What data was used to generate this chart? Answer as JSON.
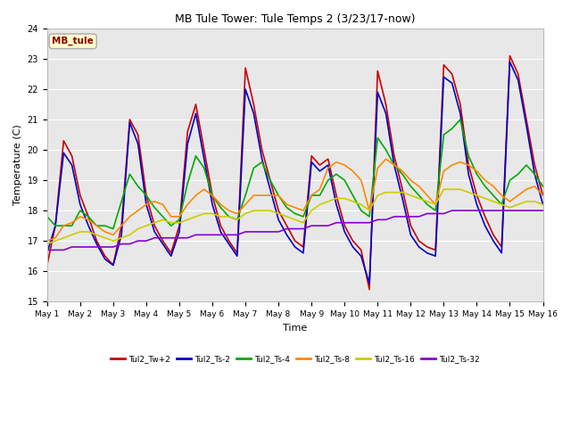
{
  "title": "MB Tule Tower: Tule Temps 2 (3/23/17-now)",
  "xlabel": "Time",
  "ylabel": "Temperature (C)",
  "ylim": [
    15.0,
    24.0
  ],
  "yticks": [
    15.0,
    16.0,
    17.0,
    18.0,
    19.0,
    20.0,
    21.0,
    22.0,
    23.0,
    24.0
  ],
  "xlim": [
    0,
    15
  ],
  "xtick_labels": [
    "May 1",
    "May 2",
    "May 3",
    "May 4",
    "May 5",
    "May 6",
    "May 7",
    "May 8",
    "May 9",
    "May 10",
    "May 11",
    "May 12",
    "May 13",
    "May 14",
    "May 15",
    "May 16"
  ],
  "bg_color": "#e8e8e8",
  "fig_color": "#ffffff",
  "annotation_text": "MB_tule",
  "annotation_color": "#880000",
  "annotation_bg": "#ffffcc",
  "annotation_border": "#aaaaaa",
  "series": [
    {
      "label": "Tul2_Tw+2",
      "color": "#cc0000",
      "lw": 1.2,
      "x": [
        0,
        0.25,
        0.5,
        0.75,
        1.0,
        1.25,
        1.5,
        1.75,
        2.0,
        2.25,
        2.5,
        2.75,
        3.0,
        3.25,
        3.5,
        3.75,
        4.0,
        4.25,
        4.5,
        4.75,
        5.0,
        5.25,
        5.5,
        5.75,
        6.0,
        6.25,
        6.5,
        6.75,
        7.0,
        7.25,
        7.5,
        7.75,
        8.0,
        8.25,
        8.5,
        8.75,
        9.0,
        9.25,
        9.5,
        9.75,
        10.0,
        10.25,
        10.5,
        10.75,
        11.0,
        11.25,
        11.5,
        11.75,
        12.0,
        12.25,
        12.5,
        12.75,
        13.0,
        13.25,
        13.5,
        13.75,
        14.0,
        14.25,
        14.5,
        14.75,
        15.0
      ],
      "y": [
        16.2,
        17.5,
        20.3,
        19.8,
        18.5,
        17.8,
        17.0,
        16.5,
        16.2,
        17.5,
        21.0,
        20.5,
        18.5,
        17.5,
        17.0,
        16.6,
        17.5,
        20.6,
        21.5,
        20.0,
        18.5,
        17.5,
        17.0,
        16.6,
        22.7,
        21.5,
        20.0,
        19.0,
        18.0,
        17.5,
        17.0,
        16.8,
        19.8,
        19.5,
        19.7,
        18.5,
        17.5,
        17.0,
        16.7,
        15.4,
        22.6,
        21.5,
        19.8,
        18.7,
        17.5,
        17.0,
        16.8,
        16.7,
        22.8,
        22.5,
        21.5,
        19.5,
        18.5,
        17.8,
        17.2,
        16.8,
        23.1,
        22.5,
        21.0,
        19.5,
        18.5
      ]
    },
    {
      "label": "Tul2_Ts-2",
      "color": "#0000cc",
      "lw": 1.2,
      "x": [
        0,
        0.25,
        0.5,
        0.75,
        1.0,
        1.25,
        1.5,
        1.75,
        2.0,
        2.25,
        2.5,
        2.75,
        3.0,
        3.25,
        3.5,
        3.75,
        4.0,
        4.25,
        4.5,
        4.75,
        5.0,
        5.25,
        5.5,
        5.75,
        6.0,
        6.25,
        6.5,
        6.75,
        7.0,
        7.25,
        7.5,
        7.75,
        8.0,
        8.25,
        8.5,
        8.75,
        9.0,
        9.25,
        9.5,
        9.75,
        10.0,
        10.25,
        10.5,
        10.75,
        11.0,
        11.25,
        11.5,
        11.75,
        12.0,
        12.25,
        12.5,
        12.75,
        13.0,
        13.25,
        13.5,
        13.75,
        14.0,
        14.25,
        14.5,
        14.75,
        15.0
      ],
      "y": [
        16.6,
        17.5,
        19.9,
        19.5,
        18.2,
        17.5,
        16.9,
        16.4,
        16.2,
        17.2,
        20.9,
        20.2,
        18.2,
        17.3,
        16.9,
        16.5,
        17.3,
        20.2,
        21.2,
        19.7,
        18.2,
        17.3,
        16.9,
        16.5,
        22.0,
        21.2,
        19.7,
        18.7,
        17.7,
        17.2,
        16.8,
        16.6,
        19.6,
        19.3,
        19.5,
        18.2,
        17.3,
        16.8,
        16.5,
        15.6,
        21.9,
        21.2,
        19.5,
        18.4,
        17.2,
        16.8,
        16.6,
        16.5,
        22.4,
        22.2,
        21.2,
        19.2,
        18.2,
        17.5,
        17.0,
        16.6,
        22.9,
        22.3,
        20.8,
        19.2,
        18.2
      ]
    },
    {
      "label": "Tul2_Ts-4",
      "color": "#00aa00",
      "lw": 1.2,
      "x": [
        0,
        0.25,
        0.5,
        0.75,
        1.0,
        1.25,
        1.5,
        1.75,
        2.0,
        2.25,
        2.5,
        2.75,
        3.0,
        3.25,
        3.5,
        3.75,
        4.0,
        4.25,
        4.5,
        4.75,
        5.0,
        5.25,
        5.5,
        5.75,
        6.0,
        6.25,
        6.5,
        6.75,
        7.0,
        7.25,
        7.5,
        7.75,
        8.0,
        8.25,
        8.5,
        8.75,
        9.0,
        9.25,
        9.5,
        9.75,
        10.0,
        10.25,
        10.5,
        10.75,
        11.0,
        11.25,
        11.5,
        11.75,
        12.0,
        12.25,
        12.5,
        12.75,
        13.0,
        13.25,
        13.5,
        13.75,
        14.0,
        14.25,
        14.5,
        14.75,
        15.0
      ],
      "y": [
        17.8,
        17.5,
        17.5,
        17.5,
        18.0,
        17.8,
        17.5,
        17.5,
        17.4,
        18.3,
        19.2,
        18.8,
        18.5,
        18.1,
        17.8,
        17.5,
        17.7,
        18.9,
        19.8,
        19.4,
        18.5,
        18.1,
        17.8,
        17.7,
        18.5,
        19.4,
        19.6,
        19.0,
        18.5,
        18.1,
        17.9,
        17.8,
        18.5,
        18.5,
        19.0,
        19.2,
        19.0,
        18.5,
        18.0,
        17.8,
        20.4,
        20.0,
        19.5,
        19.2,
        18.8,
        18.5,
        18.2,
        18.0,
        20.5,
        20.7,
        21.0,
        19.8,
        19.2,
        18.8,
        18.5,
        18.2,
        19.0,
        19.2,
        19.5,
        19.2,
        18.8
      ]
    },
    {
      "label": "Tul2_Ts-8",
      "color": "#ff8800",
      "lw": 1.2,
      "x": [
        0,
        0.25,
        0.5,
        0.75,
        1.0,
        1.25,
        1.5,
        1.75,
        2.0,
        2.25,
        2.5,
        2.75,
        3.0,
        3.25,
        3.5,
        3.75,
        4.0,
        4.25,
        4.5,
        4.75,
        5.0,
        5.25,
        5.5,
        5.75,
        6.0,
        6.25,
        6.5,
        6.75,
        7.0,
        7.25,
        7.5,
        7.75,
        8.0,
        8.25,
        8.5,
        8.75,
        9.0,
        9.25,
        9.5,
        9.75,
        10.0,
        10.25,
        10.5,
        10.75,
        11.0,
        11.25,
        11.5,
        11.75,
        12.0,
        12.25,
        12.5,
        12.75,
        13.0,
        13.25,
        13.5,
        13.75,
        14.0,
        14.25,
        14.5,
        14.75,
        15.0
      ],
      "y": [
        17.0,
        17.1,
        17.5,
        17.6,
        17.8,
        17.7,
        17.5,
        17.3,
        17.2,
        17.5,
        17.8,
        18.0,
        18.2,
        18.3,
        18.2,
        17.8,
        17.8,
        18.2,
        18.5,
        18.7,
        18.5,
        18.2,
        18.0,
        17.9,
        18.2,
        18.5,
        18.5,
        18.5,
        18.5,
        18.2,
        18.1,
        18.0,
        18.5,
        18.7,
        19.4,
        19.6,
        19.5,
        19.3,
        19.0,
        18.0,
        19.4,
        19.7,
        19.5,
        19.3,
        19.0,
        18.8,
        18.5,
        18.2,
        19.3,
        19.5,
        19.6,
        19.5,
        19.3,
        19.0,
        18.8,
        18.5,
        18.3,
        18.5,
        18.7,
        18.8,
        18.5
      ]
    },
    {
      "label": "Tul2_Ts-16",
      "color": "#cccc00",
      "lw": 1.2,
      "x": [
        0,
        0.25,
        0.5,
        0.75,
        1.0,
        1.25,
        1.5,
        1.75,
        2.0,
        2.25,
        2.5,
        2.75,
        3.0,
        3.25,
        3.5,
        3.75,
        4.0,
        4.25,
        4.5,
        4.75,
        5.0,
        5.25,
        5.5,
        5.75,
        6.0,
        6.25,
        6.5,
        6.75,
        7.0,
        7.25,
        7.5,
        7.75,
        8.0,
        8.25,
        8.5,
        8.75,
        9.0,
        9.25,
        9.5,
        9.75,
        10.0,
        10.25,
        10.5,
        10.75,
        11.0,
        11.25,
        11.5,
        11.75,
        12.0,
        12.25,
        12.5,
        12.75,
        13.0,
        13.25,
        13.5,
        13.75,
        14.0,
        14.25,
        14.5,
        14.75,
        15.0
      ],
      "y": [
        16.9,
        17.0,
        17.1,
        17.2,
        17.3,
        17.3,
        17.2,
        17.1,
        17.0,
        17.1,
        17.2,
        17.4,
        17.5,
        17.6,
        17.7,
        17.6,
        17.6,
        17.7,
        17.8,
        17.9,
        17.9,
        17.8,
        17.8,
        17.7,
        17.9,
        18.0,
        18.0,
        18.0,
        17.9,
        17.8,
        17.7,
        17.6,
        18.0,
        18.2,
        18.3,
        18.4,
        18.4,
        18.3,
        18.2,
        18.0,
        18.5,
        18.6,
        18.6,
        18.6,
        18.5,
        18.4,
        18.3,
        18.2,
        18.7,
        18.7,
        18.7,
        18.6,
        18.5,
        18.4,
        18.3,
        18.2,
        18.1,
        18.2,
        18.3,
        18.3,
        18.2
      ]
    },
    {
      "label": "Tul2_Ts-32",
      "color": "#8800cc",
      "lw": 1.2,
      "x": [
        0,
        0.25,
        0.5,
        0.75,
        1.0,
        1.25,
        1.5,
        1.75,
        2.0,
        2.25,
        2.5,
        2.75,
        3.0,
        3.25,
        3.5,
        3.75,
        4.0,
        4.25,
        4.5,
        4.75,
        5.0,
        5.25,
        5.5,
        5.75,
        6.0,
        6.25,
        6.5,
        6.75,
        7.0,
        7.25,
        7.5,
        7.75,
        8.0,
        8.25,
        8.5,
        8.75,
        9.0,
        9.25,
        9.5,
        9.75,
        10.0,
        10.25,
        10.5,
        10.75,
        11.0,
        11.25,
        11.5,
        11.75,
        12.0,
        12.25,
        12.5,
        12.75,
        13.0,
        13.25,
        13.5,
        13.75,
        14.0,
        14.25,
        14.5,
        14.75,
        15.0
      ],
      "y": [
        16.7,
        16.7,
        16.7,
        16.8,
        16.8,
        16.8,
        16.8,
        16.8,
        16.8,
        16.9,
        16.9,
        17.0,
        17.0,
        17.1,
        17.1,
        17.1,
        17.1,
        17.1,
        17.2,
        17.2,
        17.2,
        17.2,
        17.2,
        17.2,
        17.3,
        17.3,
        17.3,
        17.3,
        17.3,
        17.4,
        17.4,
        17.4,
        17.5,
        17.5,
        17.5,
        17.6,
        17.6,
        17.6,
        17.6,
        17.6,
        17.7,
        17.7,
        17.8,
        17.8,
        17.8,
        17.8,
        17.9,
        17.9,
        17.9,
        18.0,
        18.0,
        18.0,
        18.0,
        18.0,
        18.0,
        18.0,
        18.0,
        18.0,
        18.0,
        18.0,
        18.0
      ]
    }
  ]
}
